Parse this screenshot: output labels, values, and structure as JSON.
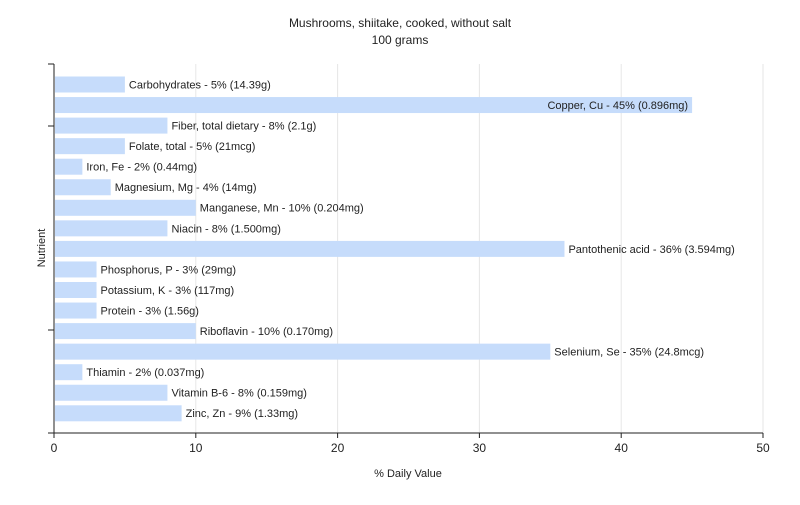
{
  "chart_data": {
    "type": "bar",
    "orientation": "horizontal",
    "title": "Mushrooms, shiitake, cooked, without salt",
    "subtitle": "100 grams",
    "xlabel": "% Daily Value",
    "ylabel": "Nutrient",
    "xlim": [
      0,
      50
    ],
    "xticks": [
      0,
      10,
      20,
      30,
      40,
      50
    ],
    "grid": true,
    "legend": "none",
    "bar_color": "#c6dcfb",
    "categories": [
      "Carbohydrates",
      "Copper, Cu",
      "Fiber, total dietary",
      "Folate, total",
      "Iron, Fe",
      "Magnesium, Mg",
      "Manganese, Mn",
      "Niacin",
      "Pantothenic acid",
      "Phosphorus, P",
      "Potassium, K",
      "Protein",
      "Riboflavin",
      "Selenium, Se",
      "Thiamin",
      "Vitamin B-6",
      "Zinc, Zn"
    ],
    "values": [
      5,
      45,
      8,
      5,
      2,
      4,
      10,
      8,
      36,
      3,
      3,
      3,
      10,
      35,
      2,
      8,
      9
    ],
    "labels": [
      "Carbohydrates - 5% (14.39g)",
      "Copper, Cu - 45% (0.896mg)",
      "Fiber, total dietary - 8% (2.1g)",
      "Folate, total - 5% (21mcg)",
      "Iron, Fe - 2% (0.44mg)",
      "Magnesium, Mg - 4% (14mg)",
      "Manganese, Mn - 10% (0.204mg)",
      "Niacin - 8% (1.500mg)",
      "Pantothenic acid - 36% (3.594mg)",
      "Phosphorus, P - 3% (29mg)",
      "Potassium, K - 3% (117mg)",
      "Protein - 3% (1.56g)",
      "Riboflavin - 10% (0.170mg)",
      "Selenium, Se - 35% (24.8mcg)",
      "Thiamin - 2% (0.037mg)",
      "Vitamin B-6 - 8% (0.159mg)",
      "Zinc, Zn - 9% (1.33mg)"
    ]
  }
}
